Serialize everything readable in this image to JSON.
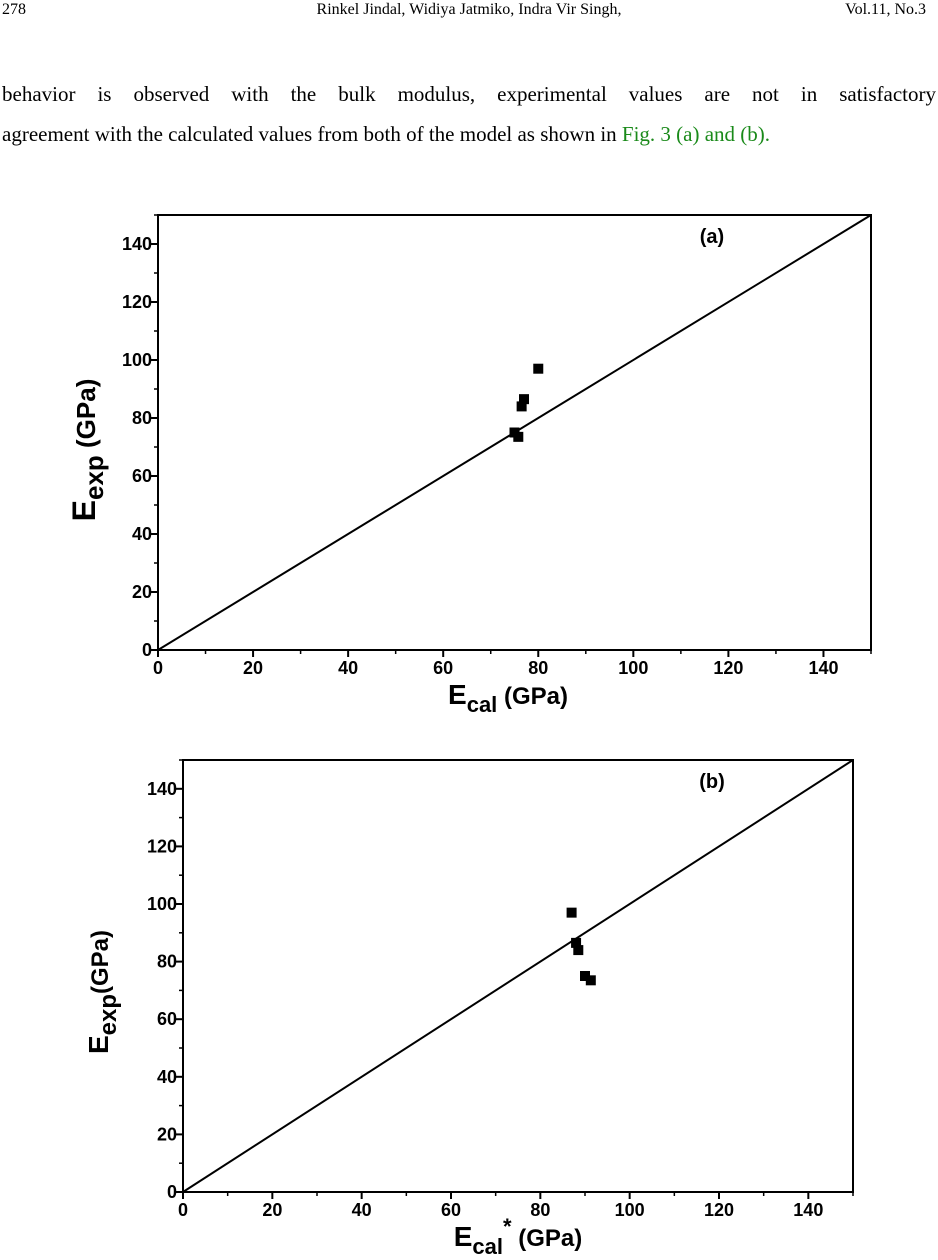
{
  "header": {
    "page_number": "278",
    "authors": "Rinkel Jindal,  Widiya Jatmiko, Indra Vir Singh,",
    "volume": "Vol.11, No.3"
  },
  "body": {
    "line1": "behavior is observed with the bulk modulus, experimental values are not in satisfactory",
    "line2_prefix": "agreement with the calculated values from both of the model as shown in ",
    "fig_ref": "Fig. 3 (a) and (b)."
  },
  "chart_data": [
    {
      "type": "scatter",
      "panel_label": "(a)",
      "xlabel": {
        "main": "E",
        "sub": "cal",
        "rest": " (GPa)"
      },
      "ylabel": {
        "main": "E",
        "sub": "exp",
        "rest": " (GPa)"
      },
      "xlim": [
        0,
        150
      ],
      "ylim": [
        0,
        150
      ],
      "xticks": [
        "0",
        "20",
        "40",
        "60",
        "80",
        "100",
        "120",
        "140"
      ],
      "yticks": [
        "0",
        "20",
        "40",
        "60",
        "80",
        "100",
        "120",
        "140"
      ],
      "line": {
        "x": [
          0,
          150
        ],
        "y": [
          0,
          150
        ]
      },
      "points": [
        {
          "x": 80.0,
          "y": 97.0
        },
        {
          "x": 77.0,
          "y": 86.5
        },
        {
          "x": 76.5,
          "y": 84.0
        },
        {
          "x": 75.0,
          "y": 75.0
        },
        {
          "x": 75.8,
          "y": 73.5
        }
      ],
      "colors": {
        "axis": "#000000",
        "marker": "#000000"
      }
    },
    {
      "type": "scatter",
      "panel_label": "(b)",
      "xlabel": {
        "main": "E",
        "sub": "cal",
        "sup": "*",
        "rest": " (GPa)"
      },
      "ylabel": {
        "main": "E",
        "sub": "exp",
        "rest": "(GPa)"
      },
      "xlim": [
        0,
        150
      ],
      "ylim": [
        0,
        150
      ],
      "xticks": [
        "0",
        "20",
        "40",
        "60",
        "80",
        "100",
        "120",
        "140"
      ],
      "yticks": [
        "0",
        "20",
        "40",
        "60",
        "80",
        "100",
        "120",
        "140"
      ],
      "line": {
        "x": [
          0,
          150
        ],
        "y": [
          0,
          150
        ]
      },
      "points": [
        {
          "x": 87.0,
          "y": 97.0
        },
        {
          "x": 88.0,
          "y": 86.5
        },
        {
          "x": 88.5,
          "y": 84.0
        },
        {
          "x": 90.0,
          "y": 75.0
        },
        {
          "x": 91.3,
          "y": 73.5
        }
      ],
      "colors": {
        "axis": "#000000",
        "marker": "#000000"
      }
    }
  ]
}
